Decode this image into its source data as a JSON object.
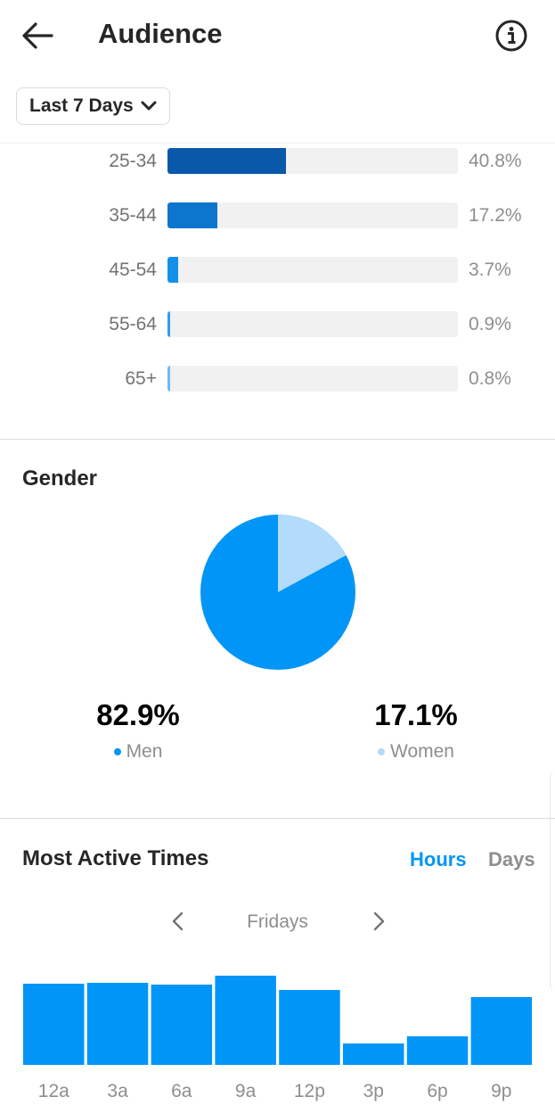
{
  "header": {
    "title": "Audience",
    "back_icon": "arrow-left-icon",
    "info_icon": "info-icon"
  },
  "filter": {
    "label": "Last 7 Days",
    "icon": "chevron-down-icon"
  },
  "age_range": {
    "rows": [
      {
        "label": "25-34",
        "value": "40.8%",
        "fraction": 0.408,
        "color": "#0a58a9"
      },
      {
        "label": "35-44",
        "value": "17.2%",
        "fraction": 0.172,
        "color": "#0c76cc"
      },
      {
        "label": "45-54",
        "value": "3.7%",
        "fraction": 0.037,
        "color": "#1491e6"
      },
      {
        "label": "55-64",
        "value": "0.9%",
        "fraction": 0.009,
        "color": "#2f9cf0"
      },
      {
        "label": "65+",
        "value": "0.8%",
        "fraction": 0.008,
        "color": "#6dbaf5"
      }
    ]
  },
  "gender": {
    "title": "Gender",
    "men": {
      "value": "82.9%",
      "label": "Men",
      "fraction": 0.829,
      "color": "#0095f6"
    },
    "women": {
      "value": "17.1%",
      "label": "Women",
      "fraction": 0.171,
      "color": "#b3dbfb"
    }
  },
  "active_times": {
    "title": "Most Active Times",
    "toggle": {
      "hours": "Hours",
      "days": "Days",
      "active": "hours",
      "active_color": "#0095f6",
      "inactive_color": "#8e8e8e"
    },
    "day": "Fridays",
    "prev_icon": "chevron-left-icon",
    "next_icon": "chevron-right-icon"
  },
  "chart_data": {
    "type": "bar",
    "title": "",
    "categories": [
      "12a",
      "3a",
      "6a",
      "9a",
      "12p",
      "3p",
      "6p",
      "9p"
    ],
    "values": [
      91,
      92,
      90,
      100,
      84,
      24,
      32,
      76
    ],
    "ylim": [
      0,
      100
    ],
    "xlabel": "",
    "ylabel": "",
    "grid": false,
    "color": "#0095f6"
  }
}
